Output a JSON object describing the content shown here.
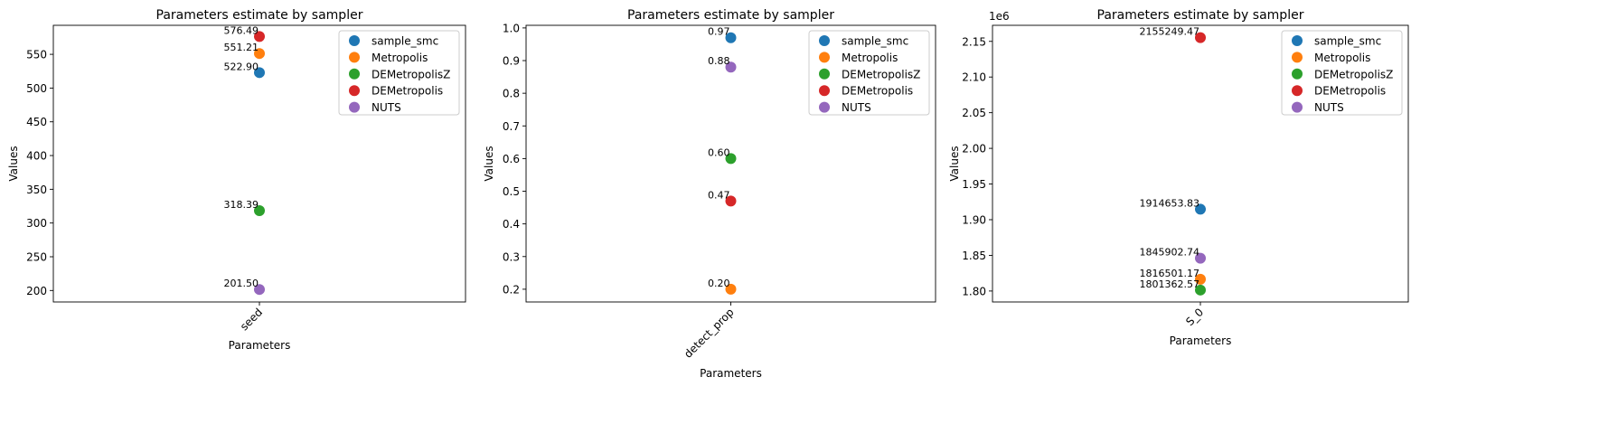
{
  "chart_data": [
    {
      "type": "scatter",
      "title": "Parameters estimate by sampler",
      "xlabel": "Parameters",
      "ylabel": "Values",
      "categories": [
        "seed"
      ],
      "ylim": [
        183,
        593
      ],
      "yticks": [
        200,
        250,
        300,
        350,
        400,
        450,
        500,
        550
      ],
      "ytick_labels": [
        "200",
        "250",
        "300",
        "350",
        "400",
        "450",
        "500",
        "550"
      ],
      "offset_text": "",
      "legend_position": "top-right",
      "grid": false,
      "series": [
        {
          "name": "sample_smc",
          "color": "#1f77b4",
          "values": [
            522.9
          ],
          "labels": [
            "522.90"
          ]
        },
        {
          "name": "Metropolis",
          "color": "#ff7f0e",
          "values": [
            551.21
          ],
          "labels": [
            "551.21"
          ]
        },
        {
          "name": "DEMetropolisZ",
          "color": "#2ca02c",
          "values": [
            318.39
          ],
          "labels": [
            "318.39"
          ]
        },
        {
          "name": "DEMetropolis",
          "color": "#d62728",
          "values": [
            576.49
          ],
          "labels": [
            "576.49"
          ]
        },
        {
          "name": "NUTS",
          "color": "#9467bd",
          "values": [
            201.5
          ],
          "labels": [
            "201.50"
          ]
        }
      ]
    },
    {
      "type": "scatter",
      "title": "Parameters estimate by sampler",
      "xlabel": "Parameters",
      "ylabel": "Values",
      "categories": [
        "detect_prop"
      ],
      "ylim": [
        0.161,
        1.008
      ],
      "yticks": [
        0.2,
        0.3,
        0.4,
        0.5,
        0.6,
        0.7,
        0.8,
        0.9,
        1.0
      ],
      "ytick_labels": [
        "0.2",
        "0.3",
        "0.4",
        "0.5",
        "0.6",
        "0.7",
        "0.8",
        "0.9",
        "1.0"
      ],
      "offset_text": "",
      "legend_position": "top-right",
      "grid": false,
      "series": [
        {
          "name": "sample_smc",
          "color": "#1f77b4",
          "values": [
            0.97
          ],
          "labels": [
            "0.97"
          ]
        },
        {
          "name": "Metropolis",
          "color": "#ff7f0e",
          "values": [
            0.2
          ],
          "labels": [
            "0.20"
          ]
        },
        {
          "name": "DEMetropolisZ",
          "color": "#2ca02c",
          "values": [
            0.6
          ],
          "labels": [
            "0.60"
          ]
        },
        {
          "name": "DEMetropolis",
          "color": "#d62728",
          "values": [
            0.47
          ],
          "labels": [
            "0.47"
          ]
        },
        {
          "name": "NUTS",
          "color": "#9467bd",
          "values": [
            0.88
          ],
          "labels": [
            "0.88"
          ]
        }
      ]
    },
    {
      "type": "scatter",
      "title": "Parameters estimate by sampler",
      "xlabel": "Parameters",
      "ylabel": "Values",
      "categories": [
        "S_0"
      ],
      "ylim": [
        1784650,
        2172500
      ],
      "yticks": [
        1800000,
        1850000,
        1900000,
        1950000,
        2000000,
        2050000,
        2100000,
        2150000
      ],
      "ytick_labels": [
        "1.80",
        "1.85",
        "1.90",
        "1.95",
        "2.00",
        "2.05",
        "2.10",
        "2.15"
      ],
      "offset_text": "1e6",
      "legend_position": "top-right",
      "grid": false,
      "series": [
        {
          "name": "sample_smc",
          "color": "#1f77b4",
          "values": [
            1914653.83
          ],
          "labels": [
            "1914653.83"
          ]
        },
        {
          "name": "Metropolis",
          "color": "#ff7f0e",
          "values": [
            1816501.17
          ],
          "labels": [
            "1816501.17"
          ]
        },
        {
          "name": "DEMetropolisZ",
          "color": "#2ca02c",
          "values": [
            1801362.57
          ],
          "labels": [
            "1801362.57"
          ]
        },
        {
          "name": "DEMetropolis",
          "color": "#d62728",
          "values": [
            2155249.47
          ],
          "labels": [
            "2155249.47"
          ]
        },
        {
          "name": "NUTS",
          "color": "#9467bd",
          "values": [
            1845902.74
          ],
          "labels": [
            "1845902.74"
          ]
        }
      ]
    }
  ]
}
